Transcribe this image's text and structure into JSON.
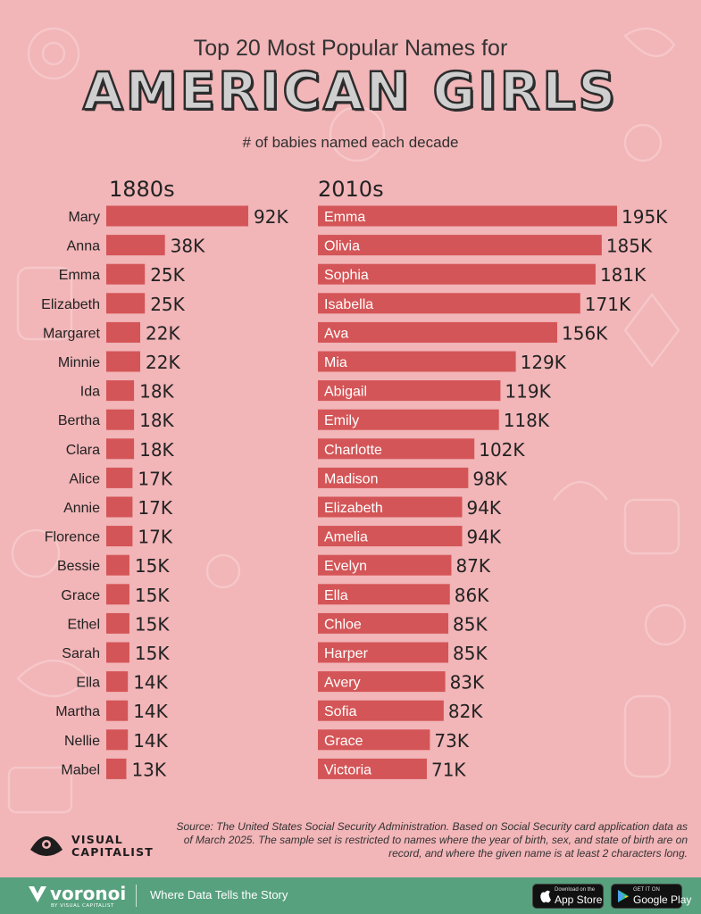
{
  "header": {
    "title_line1": "Top 20 Most Popular Names for",
    "title_line2": "AMERICAN GIRLS",
    "subtitle": "# of babies named each decade"
  },
  "chart_data": [
    {
      "type": "bar",
      "orientation": "horizontal",
      "title": "1880s",
      "categories": [
        "Mary",
        "Anna",
        "Emma",
        "Elizabeth",
        "Margaret",
        "Minnie",
        "Ida",
        "Bertha",
        "Clara",
        "Alice",
        "Annie",
        "Florence",
        "Bessie",
        "Grace",
        "Ethel",
        "Sarah",
        "Ella",
        "Martha",
        "Nellie",
        "Mabel"
      ],
      "values": [
        92,
        38,
        25,
        25,
        22,
        22,
        18,
        18,
        18,
        17,
        17,
        17,
        15,
        15,
        15,
        15,
        14,
        14,
        14,
        13
      ],
      "labels": [
        "92K",
        "38K",
        "25K",
        "25K",
        "22K",
        "22K",
        "18K",
        "18K",
        "18K",
        "17K",
        "17K",
        "17K",
        "15K",
        "15K",
        "15K",
        "15K",
        "14K",
        "14K",
        "14K",
        "13K"
      ],
      "unit": "K",
      "bar_color": "#d45557",
      "category_label_position": "left of bar"
    },
    {
      "type": "bar",
      "orientation": "horizontal",
      "title": "2010s",
      "categories": [
        "Emma",
        "Olivia",
        "Sophia",
        "Isabella",
        "Ava",
        "Mia",
        "Abigail",
        "Emily",
        "Charlotte",
        "Madison",
        "Elizabeth",
        "Amelia",
        "Evelyn",
        "Ella",
        "Chloe",
        "Harper",
        "Avery",
        "Sofia",
        "Grace",
        "Victoria"
      ],
      "values": [
        195,
        185,
        181,
        171,
        156,
        129,
        119,
        118,
        102,
        98,
        94,
        94,
        87,
        86,
        85,
        85,
        83,
        82,
        73,
        71
      ],
      "labels": [
        "195K",
        "185K",
        "181K",
        "171K",
        "156K",
        "129K",
        "119K",
        "118K",
        "102K",
        "98K",
        "94K",
        "94K",
        "87K",
        "86K",
        "85K",
        "85K",
        "83K",
        "82K",
        "73K",
        "71K"
      ],
      "unit": "K",
      "bar_color": "#d45557",
      "category_label_position": "inside bar"
    }
  ],
  "source": "Source: The United States Social Security Administration. Based on Social Security card application data as of March 2025. The sample set is restricted to names where the year of birth, sex, and state of birth are on record, and where the given name is at least 2 characters long.",
  "brand": {
    "name_line1": "VISUAL",
    "name_line2": "CAPITALIST"
  },
  "footer": {
    "logo": "voronoi",
    "logo_sub": "BY VISUAL CAPITALIST",
    "tagline": "Where Data Tells the Story",
    "app_store_small": "Download on the",
    "app_store_big": "App Store",
    "google_play_small": "GET IT ON",
    "google_play_big": "Google Play",
    "background_color": "#57a17e"
  },
  "colors": {
    "background": "#f2b5b8",
    "bar": "#d45557",
    "text": "#222222"
  }
}
